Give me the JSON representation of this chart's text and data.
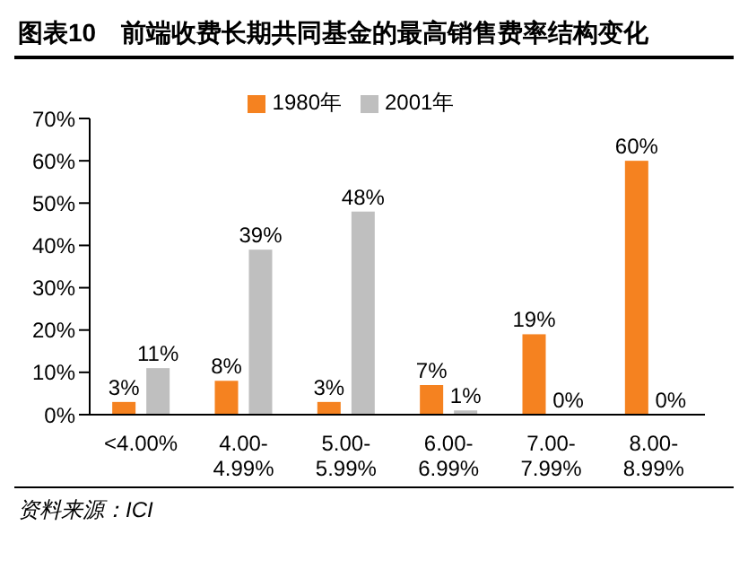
{
  "chart_data": {
    "type": "bar",
    "title": "图表10　前端收费长期共同基金的最高销售费率结构变化",
    "categories": [
      "<4.00%",
      "4.00-\n4.99%",
      "5.00-\n5.99%",
      "6.00-\n6.99%",
      "7.00-\n7.99%",
      "8.00-\n8.99%"
    ],
    "series": [
      {
        "name": "1980年",
        "color": "#f58220",
        "values": [
          3,
          8,
          3,
          7,
          19,
          60
        ],
        "value_labels": [
          "3%",
          "8%",
          "3%",
          "7%",
          "19%",
          "60%"
        ]
      },
      {
        "name": "2001年",
        "color": "#bfbfbf",
        "values": [
          11,
          39,
          48,
          1,
          0,
          0
        ],
        "value_labels": [
          "11%",
          "39%",
          "48%",
          "1%",
          "0%",
          "0%"
        ]
      }
    ],
    "ylim": [
      0,
      70
    ],
    "yticks": [
      {
        "value": 0,
        "label": "0%"
      },
      {
        "value": 10,
        "label": "10%"
      },
      {
        "value": 20,
        "label": "20%"
      },
      {
        "value": 30,
        "label": "30%"
      },
      {
        "value": 40,
        "label": "40%"
      },
      {
        "value": 50,
        "label": "50%"
      },
      {
        "value": 60,
        "label": "60%"
      },
      {
        "value": 70,
        "label": "70%"
      }
    ],
    "grid": false,
    "legend": "top",
    "annotations": [
      "资料来源：ICI"
    ]
  }
}
